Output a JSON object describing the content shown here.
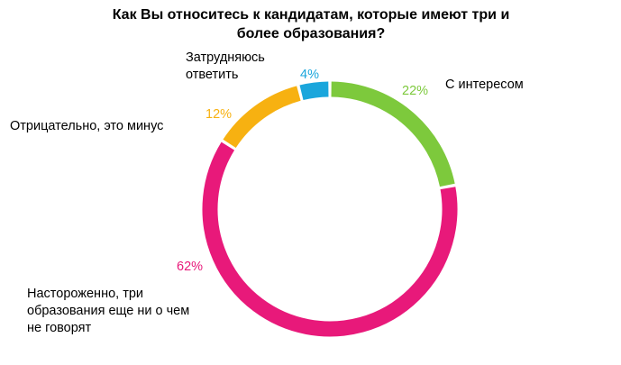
{
  "chart_data": {
    "type": "pie",
    "title_lines": [
      "Как Вы относитесь к кандидатам, которые имеют три и",
      "более образования?"
    ],
    "slices": [
      {
        "label_lines": [
          "С интересом"
        ],
        "value": 22,
        "value_label": "22%",
        "color": "#7dc93c"
      },
      {
        "label_lines": [
          "Настороженно, три",
          "образования еще ни о чем",
          "не говорят"
        ],
        "value": 62,
        "value_label": "62%",
        "color": "#e8197a"
      },
      {
        "label_lines": [
          "Отрицательно, это минус"
        ],
        "value": 12,
        "value_label": "12%",
        "color": "#f7b111"
      },
      {
        "label_lines": [
          "Затрудняюсь",
          "ответить"
        ],
        "value": 4,
        "value_label": "4%",
        "color": "#1aa6dc"
      }
    ],
    "style": "donut",
    "start": "top",
    "direction": "clockwise",
    "legend": "none"
  }
}
